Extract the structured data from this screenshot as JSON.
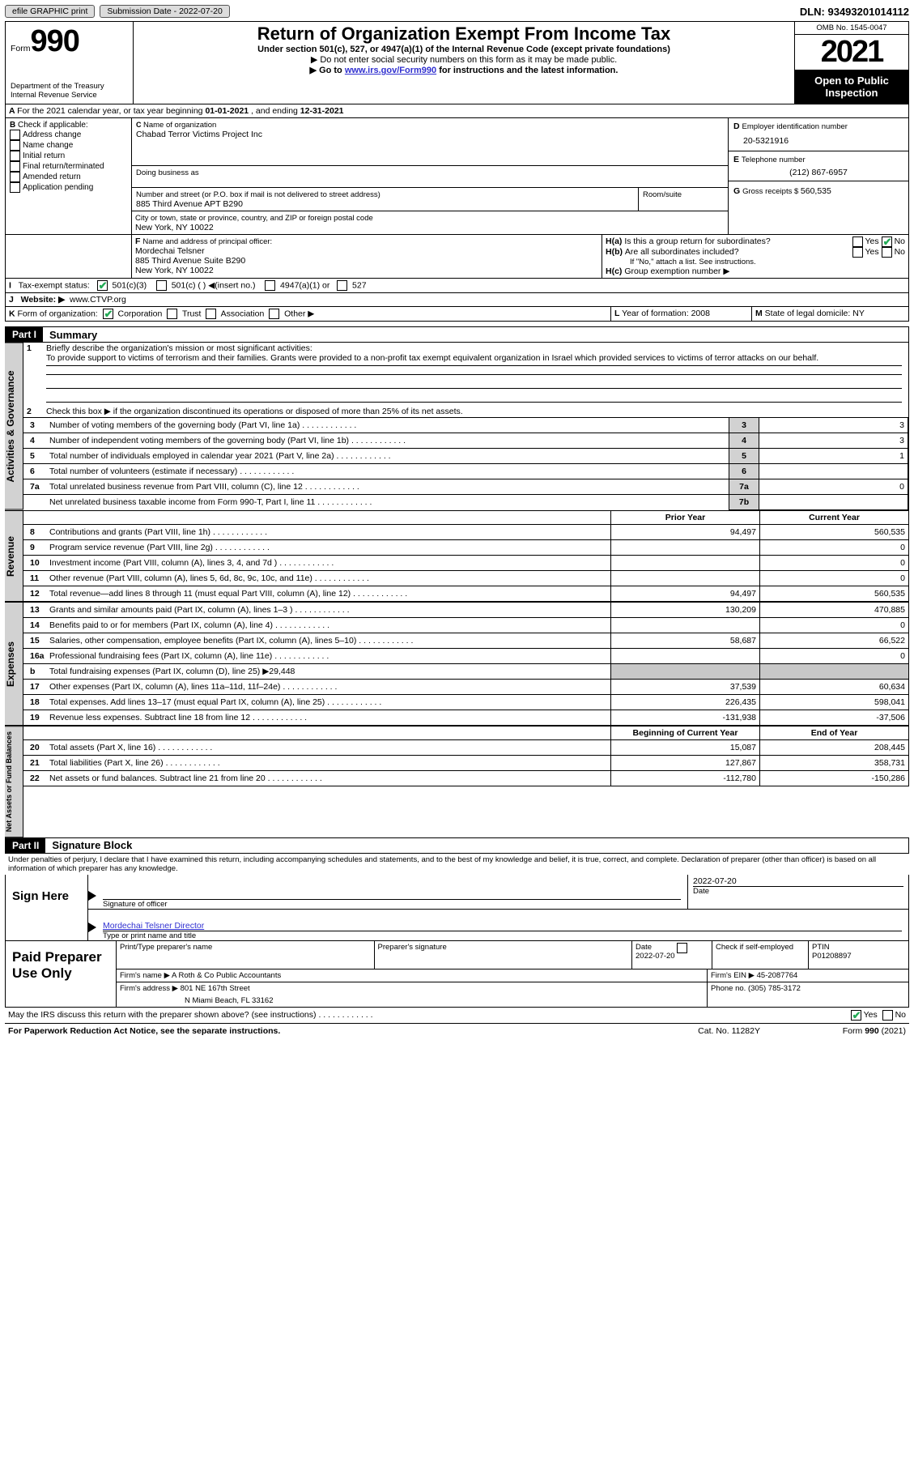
{
  "topbar": {
    "efile": "efile GRAPHIC print",
    "subdate_label": "Submission Date - ",
    "subdate": "2022-07-20",
    "dln_label": "DLN: ",
    "dln": "93493201014112"
  },
  "header": {
    "form_word": "Form",
    "form_num": "990",
    "dept": "Department of the Treasury",
    "irs": "Internal Revenue Service",
    "title": "Return of Organization Exempt From Income Tax",
    "sub1": "Under section 501(c), 527, or 4947(a)(1) of the Internal Revenue Code (except private foundations)",
    "sub2": "▶ Do not enter social security numbers on this form as it may be made public.",
    "sub3a": "▶ Go to ",
    "sub3link": "www.irs.gov/Form990",
    "sub3b": " for instructions and the latest information.",
    "omb": "OMB No. 1545-0047",
    "year": "2021",
    "open": "Open to Public Inspection"
  },
  "A": {
    "label": "For the 2021 calendar year, or tax year beginning ",
    "d1": "01-01-2021",
    "mid": "   , and ending ",
    "d2": "12-31-2021"
  },
  "B": {
    "hdr": "Check if applicable:",
    "items": [
      "Address change",
      "Name change",
      "Initial return",
      "Final return/terminated",
      "Amended return",
      "Application pending"
    ]
  },
  "C": {
    "name_l": "Name of organization",
    "name": "Chabad Terror Victims Project Inc",
    "dba_l": "Doing business as",
    "addr_l": "Number and street (or P.O. box if mail is not delivered to street address)",
    "room_l": "Room/suite",
    "addr": "885 Third Avenue APT B290",
    "city_l": "City or town, state or province, country, and ZIP or foreign postal code",
    "city": "New York, NY  10022"
  },
  "D": {
    "label": "Employer identification number",
    "val": "20-5321916"
  },
  "E": {
    "label": "Telephone number",
    "val": "(212) 867-6957"
  },
  "G": {
    "label": "Gross receipts $ ",
    "val": "560,535"
  },
  "F": {
    "label": "Name and address of principal officer:",
    "name": "Mordechai Telsner",
    "addr1": "885 Third Avenue Suite B290",
    "addr2": "New York, NY  10022"
  },
  "H": {
    "a": "Is this a group return for subordinates?",
    "b": "Are all subordinates included?",
    "note": "If \"No,\" attach a list. See instructions.",
    "c": "Group exemption number ▶",
    "yes": "Yes",
    "no": "No"
  },
  "I": {
    "label": "Tax-exempt status:",
    "o1": "501(c)(3)",
    "o2": "501(c) (  ) ◀(insert no.)",
    "o3": "4947(a)(1) or",
    "o4": "527"
  },
  "J": {
    "label": "Website: ▶",
    "val": "www.CTVP.org"
  },
  "K": {
    "label": "Form of organization:",
    "o1": "Corporation",
    "o2": "Trust",
    "o3": "Association",
    "o4": "Other ▶"
  },
  "L": {
    "label": "Year of formation: ",
    "val": "2008"
  },
  "M": {
    "label": "State of legal domicile: ",
    "val": "NY"
  },
  "part1": {
    "label": "Part I",
    "title": "Summary"
  },
  "s1": {
    "l1a": "Briefly describe the organization's mission or most significant activities:",
    "l1b": "To provide support to victims of terrorism and their families. Grants were provided to a non-profit tax exempt equivalent organization in Israel which provided services to victims of terror attacks on our behalf.",
    "l2": "Check this box ▶         if the organization discontinued its operations or disposed of more than 25% of its net assets.",
    "rows": [
      {
        "n": "3",
        "t": "Number of voting members of the governing body (Part VI, line 1a)",
        "k": "3",
        "v": "3"
      },
      {
        "n": "4",
        "t": "Number of independent voting members of the governing body (Part VI, line 1b)",
        "k": "4",
        "v": "3"
      },
      {
        "n": "5",
        "t": "Total number of individuals employed in calendar year 2021 (Part V, line 2a)",
        "k": "5",
        "v": "1"
      },
      {
        "n": "6",
        "t": "Total number of volunteers (estimate if necessary)",
        "k": "6",
        "v": ""
      },
      {
        "n": "7a",
        "t": "Total unrelated business revenue from Part VIII, column (C), line 12",
        "k": "7a",
        "v": "0"
      },
      {
        "n": "",
        "t": "Net unrelated business taxable income from Form 990-T, Part I, line 11",
        "k": "7b",
        "v": ""
      }
    ]
  },
  "cols": {
    "prior": "Prior Year",
    "cur": "Current Year",
    "boy": "Beginning of Current Year",
    "eoy": "End of Year"
  },
  "rev": [
    {
      "n": "8",
      "t": "Contributions and grants (Part VIII, line 1h)",
      "p": "94,497",
      "c": "560,535"
    },
    {
      "n": "9",
      "t": "Program service revenue (Part VIII, line 2g)",
      "p": "",
      "c": "0"
    },
    {
      "n": "10",
      "t": "Investment income (Part VIII, column (A), lines 3, 4, and 7d )",
      "p": "",
      "c": "0"
    },
    {
      "n": "11",
      "t": "Other revenue (Part VIII, column (A), lines 5, 6d, 8c, 9c, 10c, and 11e)",
      "p": "",
      "c": "0"
    },
    {
      "n": "12",
      "t": "Total revenue—add lines 8 through 11 (must equal Part VIII, column (A), line 12)",
      "p": "94,497",
      "c": "560,535"
    }
  ],
  "exp": [
    {
      "n": "13",
      "t": "Grants and similar amounts paid (Part IX, column (A), lines 1–3 )",
      "p": "130,209",
      "c": "470,885"
    },
    {
      "n": "14",
      "t": "Benefits paid to or for members (Part IX, column (A), line 4)",
      "p": "",
      "c": "0"
    },
    {
      "n": "15",
      "t": "Salaries, other compensation, employee benefits (Part IX, column (A), lines 5–10)",
      "p": "58,687",
      "c": "66,522"
    },
    {
      "n": "16a",
      "t": "Professional fundraising fees (Part IX, column (A), line 11e)",
      "p": "",
      "c": "0"
    },
    {
      "n": "b",
      "t": "Total fundraising expenses (Part IX, column (D), line 25) ▶29,448",
      "p": "SHADE",
      "c": "SHADE"
    },
    {
      "n": "17",
      "t": "Other expenses (Part IX, column (A), lines 11a–11d, 11f–24e)",
      "p": "37,539",
      "c": "60,634"
    },
    {
      "n": "18",
      "t": "Total expenses. Add lines 13–17 (must equal Part IX, column (A), line 25)",
      "p": "226,435",
      "c": "598,041"
    },
    {
      "n": "19",
      "t": "Revenue less expenses. Subtract line 18 from line 12",
      "p": "-131,938",
      "c": "-37,506"
    }
  ],
  "net": [
    {
      "n": "20",
      "t": "Total assets (Part X, line 16)",
      "p": "15,087",
      "c": "208,445"
    },
    {
      "n": "21",
      "t": "Total liabilities (Part X, line 26)",
      "p": "127,867",
      "c": "358,731"
    },
    {
      "n": "22",
      "t": "Net assets or fund balances. Subtract line 21 from line 20",
      "p": "-112,780",
      "c": "-150,286"
    }
  ],
  "part2": {
    "label": "Part II",
    "title": "Signature Block",
    "decl": "Under penalties of perjury, I declare that I have examined this return, including accompanying schedules and statements, and to the best of my knowledge and belief, it is true, correct, and complete. Declaration of preparer (other than officer) is based on all information of which preparer has any knowledge."
  },
  "sign": {
    "here": "Sign Here",
    "sigoff": "Signature of officer",
    "date": "Date",
    "dateval": "2022-07-20",
    "name": "Mordechai Telsner  Director",
    "typed": "Type or print name and title"
  },
  "paid": {
    "label": "Paid Preparer Use Only",
    "pname": "Print/Type preparer's name",
    "psig": "Preparer's signature",
    "pdate": "Date",
    "pdateval": "2022-07-20",
    "check": "Check         if self-employed",
    "ptin": "PTIN",
    "ptinval": "P01208897",
    "firm": "Firm's name    ▶ ",
    "firmval": "A Roth & Co Public Accountants",
    "ein": "Firm's EIN ▶ ",
    "einval": "45-2087764",
    "faddr": "Firm's address ▶",
    "faddrval1": "801 NE 167th Street",
    "faddrval2": "N Miami Beach, FL  33162",
    "phone": "Phone no. ",
    "phoneval": "(305) 785-3172"
  },
  "foot": {
    "q": "May the IRS discuss this return with the preparer shown above? (see instructions)",
    "yes": "Yes",
    "no": "No",
    "pra": "For Paperwork Reduction Act Notice, see the separate instructions.",
    "cat": "Cat. No. 11282Y",
    "form": "Form 990 (2021)"
  },
  "tabs": {
    "ag": "Activities & Governance",
    "rev": "Revenue",
    "exp": "Expenses",
    "net": "Net Assets or Fund Balances"
  }
}
